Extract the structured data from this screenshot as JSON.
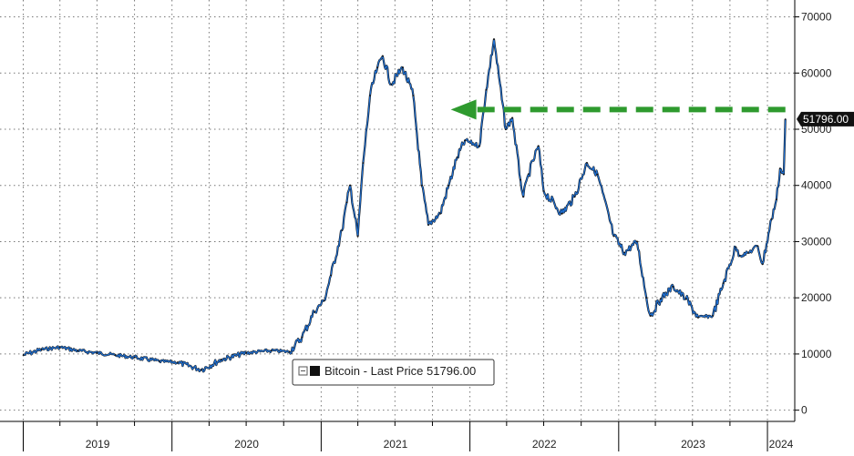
{
  "chart_data": {
    "type": "line",
    "series": [
      {
        "name": "Bitcoin",
        "x": [
          "2019-01-01",
          "2019-02-15",
          "2019-04-01",
          "2019-05-15",
          "2019-07-01",
          "2019-08-15",
          "2019-10-01",
          "2019-12-01",
          "2020-01-15",
          "2020-03-13",
          "2020-05-01",
          "2020-07-01",
          "2020-09-01",
          "2020-10-15",
          "2020-11-15",
          "2020-12-15",
          "2021-01-08",
          "2021-01-25",
          "2021-02-21",
          "2021-03-05",
          "2021-03-13",
          "2021-04-01",
          "2021-04-14",
          "2021-05-01",
          "2021-05-19",
          "2021-06-01",
          "2021-06-22",
          "2021-07-20",
          "2021-08-15",
          "2021-09-05",
          "2021-09-21",
          "2021-10-20",
          "2021-11-10",
          "2021-12-01",
          "2021-12-20",
          "2022-01-24",
          "2022-02-10",
          "2022-03-01",
          "2022-03-30",
          "2022-04-15",
          "2022-05-05",
          "2022-05-12",
          "2022-05-25",
          "2022-06-18",
          "2022-07-01",
          "2022-08-15",
          "2022-09-15",
          "2022-10-15",
          "2022-11-10",
          "2022-12-20",
          "2023-01-15",
          "2023-02-15",
          "2023-03-10",
          "2023-03-20",
          "2023-04-14",
          "2023-05-15",
          "2023-06-15",
          "2023-07-15",
          "2023-08-20",
          "2023-09-15",
          "2023-10-15",
          "2023-10-25",
          "2023-11-15",
          "2023-12-08",
          "2023-12-20",
          "2024-01-11",
          "2024-01-23",
          "2024-02-01",
          "2024-02-10",
          "2024-02-14"
        ],
        "values": [
          9800,
          10800,
          11200,
          10600,
          10200,
          9800,
          9400,
          8700,
          8500,
          7200,
          9000,
          10200,
          10600,
          10400,
          13000,
          17500,
          19500,
          24000,
          32000,
          37000,
          40000,
          31000,
          44000,
          56000,
          61000,
          63000,
          58000,
          61000,
          56000,
          40000,
          33000,
          35000,
          40000,
          45000,
          48000,
          47000,
          57000,
          66000,
          50000,
          52000,
          41000,
          38000,
          42000,
          47000,
          39000,
          35000,
          38000,
          44000,
          42000,
          31000,
          28000,
          30000,
          20000,
          16800,
          19800,
          22000,
          19800,
          16500,
          16800,
          22600,
          29000,
          27500,
          28000,
          29200,
          26000,
          34000,
          37500,
          43000,
          42000,
          51796
        ]
      }
    ],
    "ylim": [
      -2000,
      73000
    ],
    "yticks": [
      0,
      10000,
      20000,
      30000,
      40000,
      50000,
      60000,
      70000
    ],
    "ytick_labels": [
      "0",
      "10000",
      "20000",
      "30000",
      "40000",
      "50000",
      "60000",
      "70000"
    ],
    "xtick_labels": [
      "2019",
      "2020",
      "2021",
      "2022",
      "2023",
      "2024"
    ],
    "last_value_label": "51796.00",
    "legend": {
      "series_label": "Bitcoin",
      "separator": " - ",
      "field_label": "Last Price",
      "value": "51796.00"
    },
    "annotation": {
      "type": "dashed-arrow",
      "from_date": "2024-02-14",
      "to_date": "2021-11-15",
      "level": 53500,
      "color": "#2e9a2e"
    },
    "grid": true,
    "colors": {
      "line": "#1f6fd1",
      "line_dark": "#111111",
      "arrow": "#2e9a2e",
      "tag_bg": "#111111",
      "tag_text": "#ffffff"
    }
  }
}
